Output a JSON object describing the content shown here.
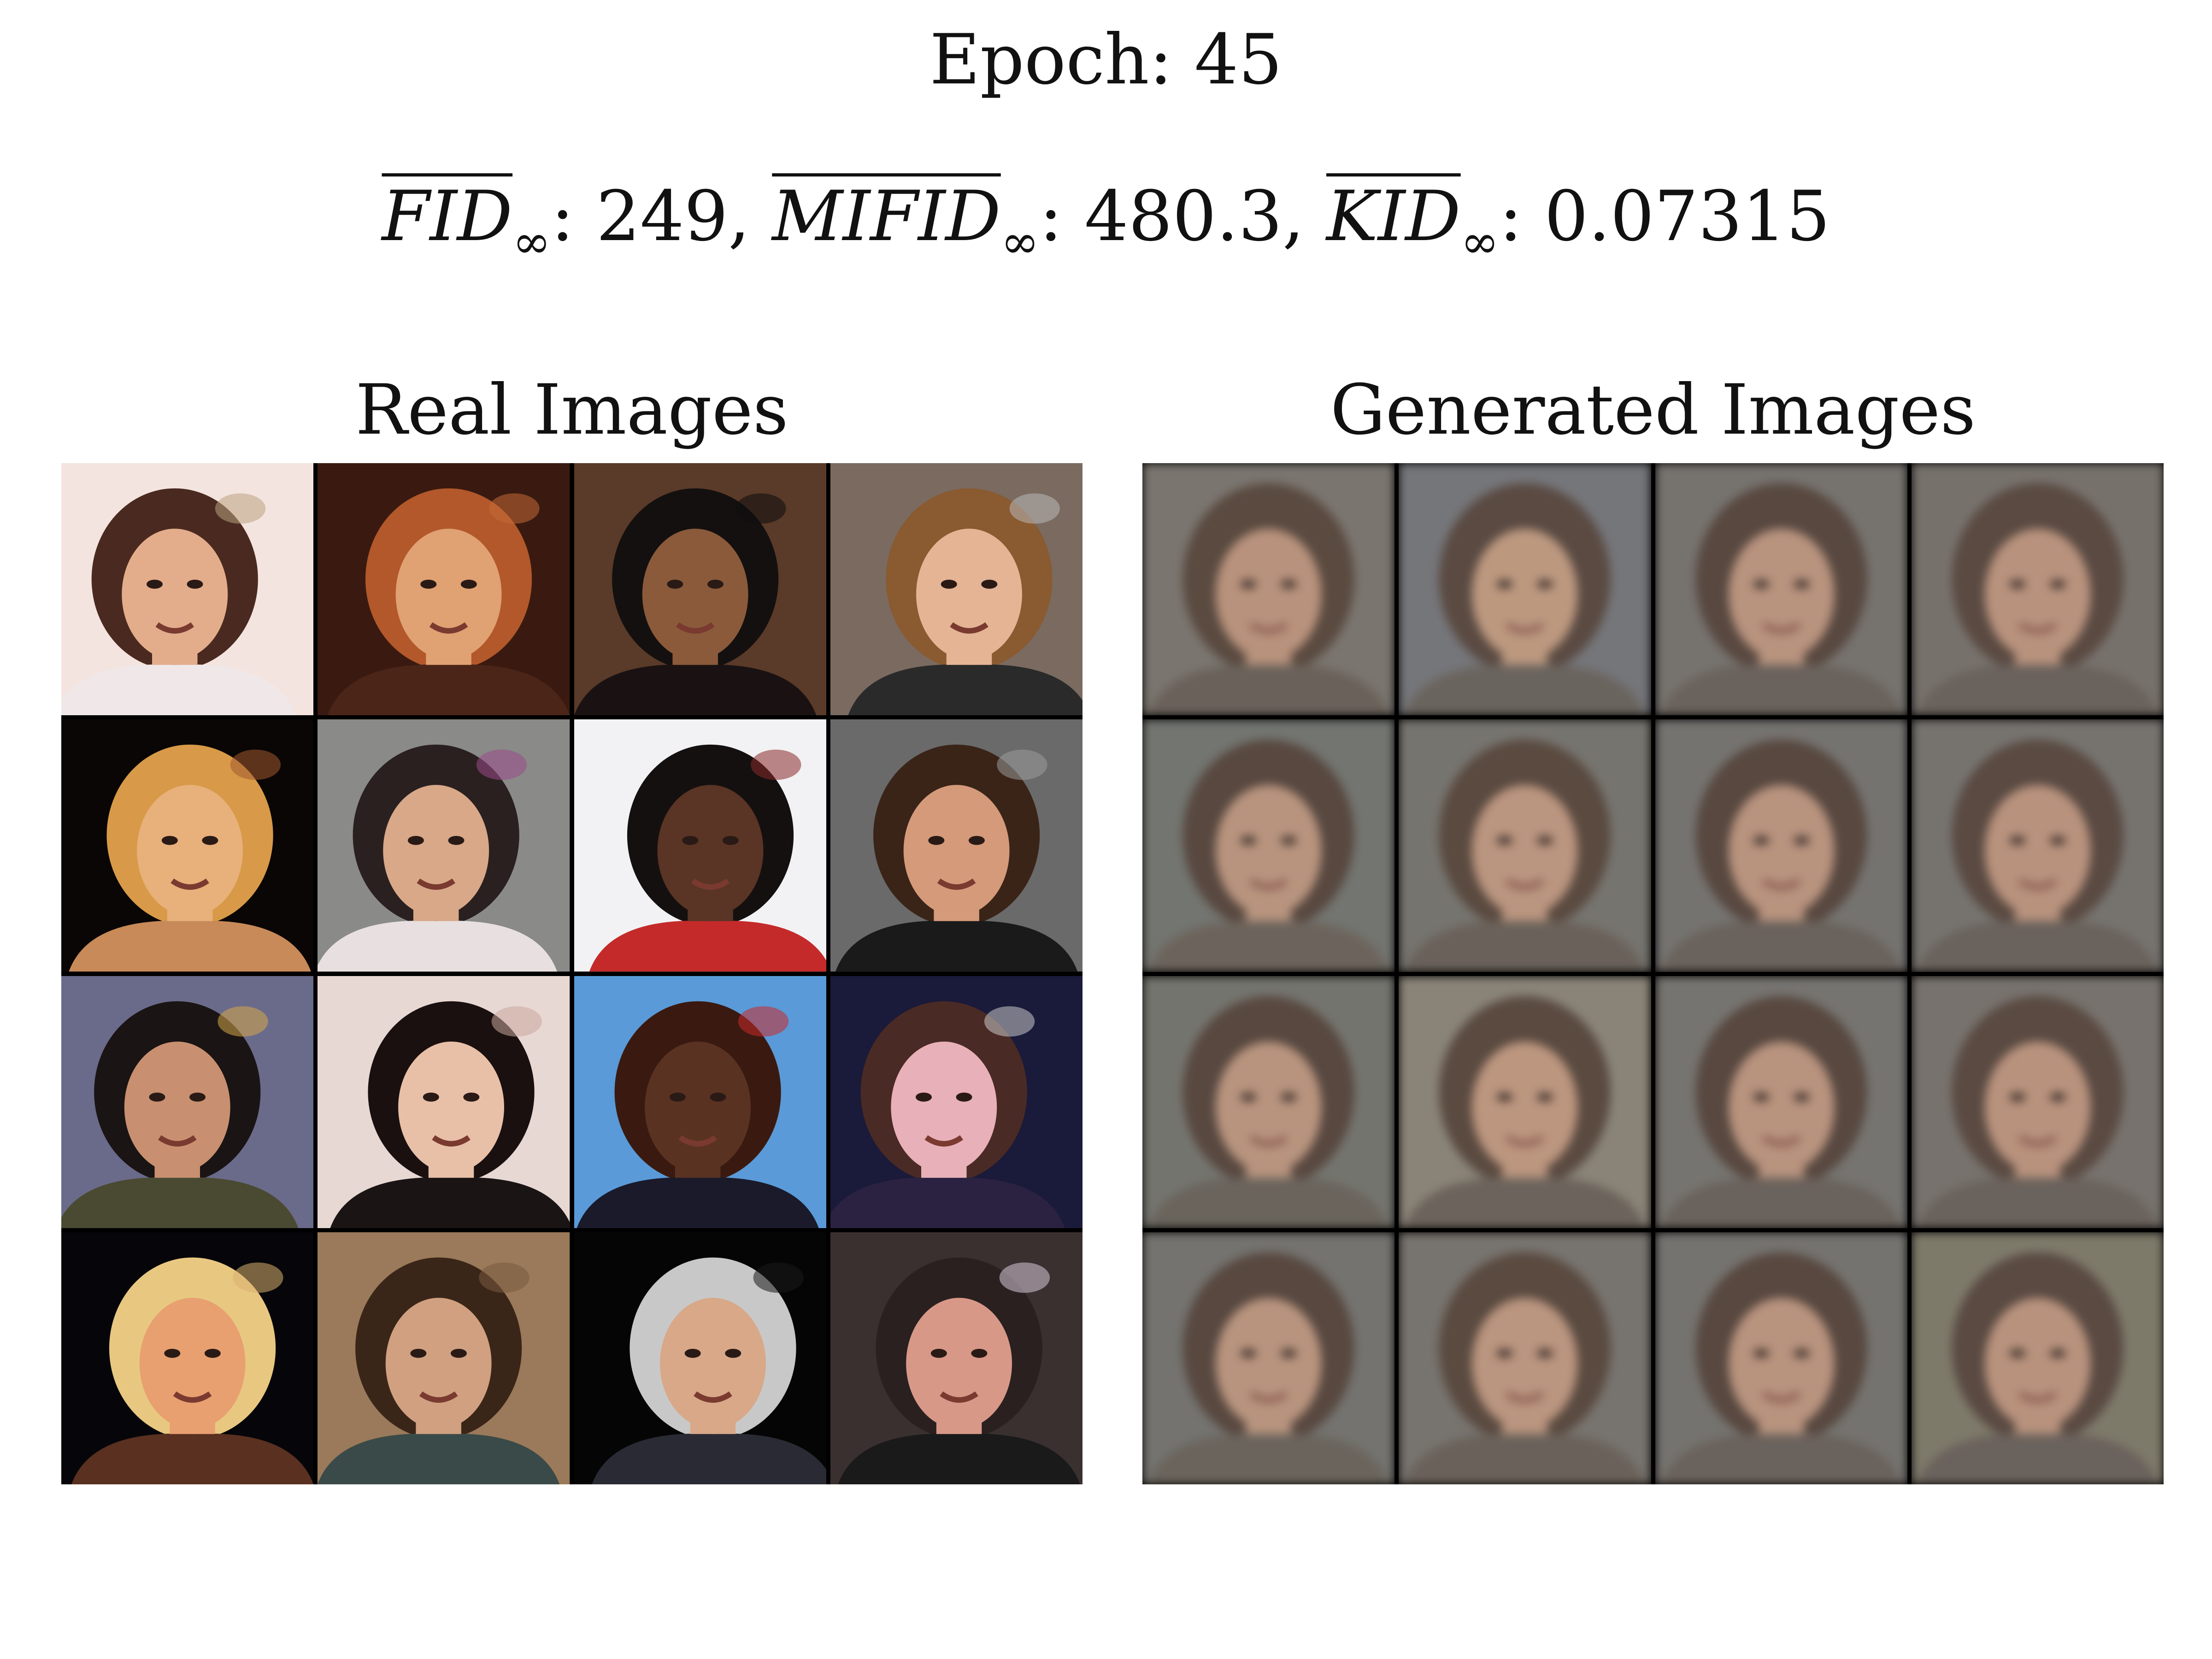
{
  "figure": {
    "epoch_label": "Epoch: 45",
    "metrics": [
      {
        "name": "FID",
        "sub": "∞",
        "value": ": 249, "
      },
      {
        "name": "MIFID",
        "sub": "∞",
        "value": ": 480.3, "
      },
      {
        "name": "KID",
        "sub": "∞",
        "value": ": 0.07315"
      }
    ],
    "real_title": "Real Images",
    "generated_title": "Generated Images"
  },
  "real_images": [
    {
      "bg": "#f4e4e0",
      "skin": "#e3ad8c",
      "hair": "#4a2a20",
      "cloth": "#f0e8e8",
      "accent": "#b9a27f"
    },
    {
      "bg": "#3a1a10",
      "skin": "#e0a173",
      "hair": "#b2582a",
      "cloth": "#4a2518",
      "accent": "#c46a35"
    },
    {
      "bg": "#5a3a28",
      "skin": "#8a5a3a",
      "hair": "#141010",
      "cloth": "#1a1212",
      "accent": "#0c0c0c"
    },
    {
      "bg": "#7a6a60",
      "skin": "#e4b495",
      "hair": "#8a5a30",
      "cloth": "#2a2a2a",
      "accent": "#b8b8b8"
    },
    {
      "bg": "#0a0606",
      "skin": "#e8b07a",
      "hair": "#d89a48",
      "cloth": "#c88a58",
      "accent": "#a25a30"
    },
    {
      "bg": "#8a8a88",
      "skin": "#d8a888",
      "hair": "#2a2020",
      "cloth": "#e8e0e0",
      "accent": "#9a4a8a"
    },
    {
      "bg": "#f2f2f4",
      "skin": "#5a3424",
      "hair": "#151010",
      "cloth": "#c42a2a",
      "accent": "#8a2a2a"
    },
    {
      "bg": "#6a6a6a",
      "skin": "#d49a7a",
      "hair": "#3a2418",
      "cloth": "#1a1a1a",
      "accent": "#9a9a9a"
    },
    {
      "bg": "#6a6a8a",
      "skin": "#c89070",
      "hair": "#1a1414",
      "cloth": "#4a4a32",
      "accent": "#d6a84a"
    },
    {
      "bg": "#e8d8d4",
      "skin": "#e8c0a8",
      "hair": "#1a1010",
      "cloth": "#1a1414",
      "accent": "#c8a89a"
    },
    {
      "bg": "#5a9ad8",
      "skin": "#5a3222",
      "hair": "#3a1a10",
      "cloth": "#1a1a2a",
      "accent": "#c82a2a"
    },
    {
      "bg": "#1a1a3a",
      "skin": "#e8b0b8",
      "hair": "#4a2a24",
      "cloth": "#2a2240",
      "accent": "#c8c8c8"
    },
    {
      "bg": "#06060a",
      "skin": "#e8a070",
      "hair": "#e8c880",
      "cloth": "#5a3020",
      "accent": "#d8b070"
    },
    {
      "bg": "#9a7a5a",
      "skin": "#d0a080",
      "hair": "#3a2618",
      "cloth": "#3a4a48",
      "accent": "#7a5a40"
    },
    {
      "bg": "#050505",
      "skin": "#d8a888",
      "hair": "#c8c8c8",
      "cloth": "#2a2a34",
      "accent": "#1a1a1a"
    },
    {
      "bg": "#3a3030",
      "skin": "#d89888",
      "hair": "#2a2020",
      "cloth": "#1a1a1a",
      "accent": "#d8c8d8"
    }
  ],
  "generated_images": [
    {
      "bg": "#7a756f",
      "skin": "#b8927c",
      "hair": "#5a4a40",
      "cloth": "#6a625a"
    },
    {
      "bg": "#75767a",
      "skin": "#bc987f",
      "hair": "#5a4a42",
      "cloth": "#6a645e"
    },
    {
      "bg": "#76726e",
      "skin": "#b8937e",
      "hair": "#584840",
      "cloth": "#6a625c"
    },
    {
      "bg": "#77716c",
      "skin": "#b8927d",
      "hair": "#5a4a42",
      "cloth": "#6a625c"
    },
    {
      "bg": "#737570",
      "skin": "#b8947e",
      "hair": "#584840",
      "cloth": "#6c645c"
    },
    {
      "bg": "#76746f",
      "skin": "#ba957f",
      "hair": "#5a4a40",
      "cloth": "#6a625a"
    },
    {
      "bg": "#757370",
      "skin": "#b8937e",
      "hair": "#584840",
      "cloth": "#6a625c"
    },
    {
      "bg": "#76736f",
      "skin": "#b8927d",
      "hair": "#5a4a42",
      "cloth": "#6a625c"
    },
    {
      "bg": "#74746e",
      "skin": "#b8947e",
      "hair": "#584840",
      "cloth": "#6a645c"
    },
    {
      "bg": "#8a8478",
      "skin": "#bc967f",
      "hair": "#5a4a40",
      "cloth": "#6c645c"
    },
    {
      "bg": "#767470",
      "skin": "#b8937e",
      "hair": "#584840",
      "cloth": "#6a625c"
    },
    {
      "bg": "#77726d",
      "skin": "#b8927d",
      "hair": "#5a4a42",
      "cloth": "#6a625c"
    },
    {
      "bg": "#74736f",
      "skin": "#b8947e",
      "hair": "#584840",
      "cloth": "#6a645c"
    },
    {
      "bg": "#77736e",
      "skin": "#ba957f",
      "hair": "#5a4a40",
      "cloth": "#6a625a"
    },
    {
      "bg": "#75736f",
      "skin": "#b8937e",
      "hair": "#584840",
      "cloth": "#6a625c"
    },
    {
      "bg": "#7e7a6a",
      "skin": "#b8927d",
      "hair": "#5a4a42",
      "cloth": "#6a625c"
    }
  ]
}
